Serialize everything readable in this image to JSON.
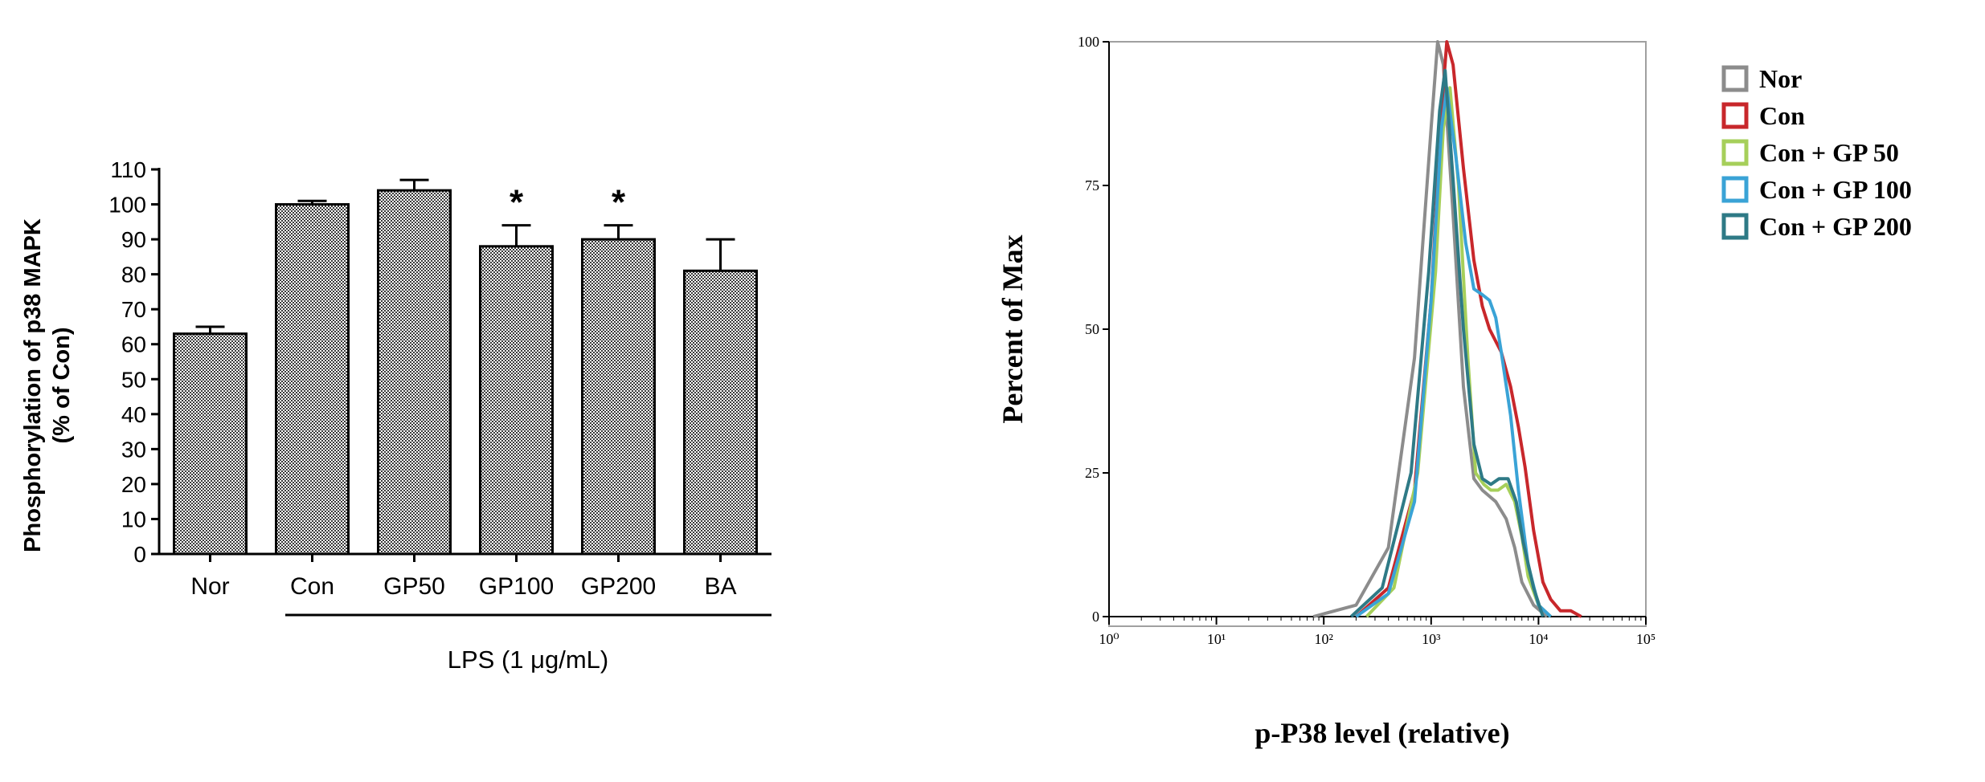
{
  "chart_data": [
    {
      "type": "bar",
      "title": "",
      "xlabel": "LPS (1 μg/mL)",
      "ylabel": "Phosphorylation of p38 MAPK",
      "ylabel_sub": "(% of Con)",
      "ylim": [
        0,
        110
      ],
      "yticks": [
        "0",
        "10",
        "20",
        "30",
        "40",
        "50",
        "60",
        "70",
        "80",
        "90",
        "100",
        "110"
      ],
      "categories": [
        "Nor",
        "Con",
        "GP50",
        "GP100",
        "GP200",
        "BA"
      ],
      "values": [
        63,
        100,
        104,
        88,
        90,
        81
      ],
      "errors": [
        2,
        1,
        3,
        6,
        4,
        9
      ],
      "significance": [
        "",
        "",
        "",
        "*",
        "*",
        ""
      ],
      "bracket_groups": [
        "Con",
        "GP50",
        "GP100",
        "GP200",
        "BA"
      ],
      "grid": false,
      "bar_fill": "#8c8c8c"
    },
    {
      "type": "line",
      "title": "",
      "xlabel": "p-P38 level (relative)",
      "ylabel": "Percent of Max",
      "xscale": "log",
      "xlim": [
        1,
        100000
      ],
      "ylim": [
        0,
        100
      ],
      "xticks": [
        "10⁰",
        "10¹",
        "10²",
        "10³",
        "10⁴",
        "10⁵"
      ],
      "yticks": [
        "0",
        "25",
        "50",
        "75",
        "100"
      ],
      "legend": "right",
      "grid": false,
      "series": [
        {
          "name": "Nor",
          "color": "#8c8c8c",
          "x": [
            80,
            200,
            400,
            700,
            1000,
            1150,
            1300,
            1600,
            2000,
            2500,
            3000,
            4000,
            5000,
            6000,
            7000,
            9000,
            12000
          ],
          "y": [
            0,
            2,
            12,
            45,
            85,
            100,
            96,
            70,
            40,
            24,
            22,
            20,
            17,
            12,
            6,
            2,
            0
          ]
        },
        {
          "name": "Con",
          "color": "#c8272b",
          "x": [
            200,
            400,
            700,
            1000,
            1250,
            1400,
            1600,
            2000,
            2500,
            3000,
            3500,
            4500,
            5500,
            6500,
            7500,
            9000,
            11000,
            13000,
            16000,
            20000,
            25000
          ],
          "y": [
            0,
            5,
            22,
            55,
            88,
            100,
            96,
            78,
            62,
            54,
            50,
            46,
            40,
            33,
            26,
            15,
            6,
            3,
            1,
            1,
            0
          ]
        },
        {
          "name": "Con + GP 50",
          "color": "#a6cf5a",
          "x": [
            250,
            450,
            750,
            1100,
            1300,
            1500,
            1800,
            2200,
            2600,
            3100,
            3600,
            4200,
            5000,
            6000,
            7000,
            8000,
            10000,
            13000
          ],
          "y": [
            0,
            5,
            25,
            60,
            85,
            92,
            75,
            45,
            25,
            23,
            22,
            22,
            23,
            20,
            14,
            7,
            2,
            0
          ]
        },
        {
          "name": "Con + GP 100",
          "color": "#3aa3d6",
          "x": [
            200,
            400,
            700,
            1000,
            1250,
            1400,
            1700,
            2100,
            2500,
            3000,
            3500,
            4000,
            4500,
            5500,
            6500,
            8000,
            10000,
            13000
          ],
          "y": [
            0,
            4,
            20,
            55,
            85,
            92,
            80,
            65,
            57,
            56,
            55,
            52,
            46,
            35,
            22,
            9,
            2,
            0
          ]
        },
        {
          "name": "Con + GP 200",
          "color": "#2e7a86",
          "x": [
            180,
            350,
            650,
            950,
            1200,
            1350,
            1600,
            2000,
            2500,
            3000,
            3600,
            4300,
            5200,
            6200,
            7200,
            9000,
            11000
          ],
          "y": [
            0,
            5,
            25,
            60,
            88,
            95,
            76,
            50,
            30,
            24,
            23,
            24,
            24,
            20,
            13,
            5,
            0
          ]
        }
      ]
    }
  ]
}
